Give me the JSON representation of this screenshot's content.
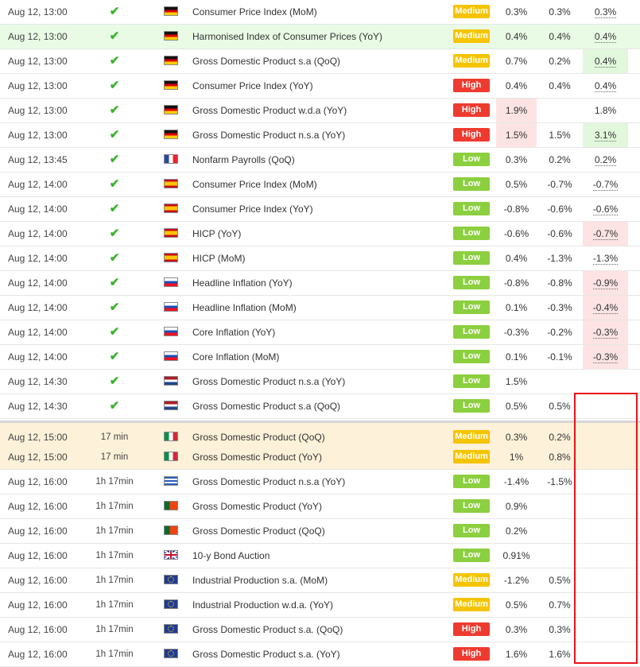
{
  "rows": [
    {
      "time": "Aug 12, 13:00",
      "status": "",
      "flag": "de",
      "event": "Consumer Price Index (MoM)",
      "importance": "Medium",
      "actual": "0.3%",
      "forecast": "0.3%",
      "previous": "0.3%",
      "hl": "",
      "act_bg": "",
      "prev_bg": ""
    },
    {
      "time": "Aug 12, 13:00",
      "status": "",
      "flag": "de",
      "event": "Harmonised Index of Consumer Prices (YoY)",
      "importance": "Medium",
      "actual": "0.4%",
      "forecast": "0.4%",
      "previous": "0.4%",
      "hl": "hl",
      "act_bg": "",
      "prev_bg": ""
    },
    {
      "time": "Aug 12, 13:00",
      "status": "",
      "flag": "de",
      "event": "Gross Domestic Product s.a (QoQ)",
      "importance": "Medium",
      "actual": "0.7%",
      "forecast": "0.2%",
      "previous": "0.4%",
      "hl": "",
      "act_bg": "",
      "prev_bg": "green"
    },
    {
      "time": "Aug 12, 13:00",
      "status": "",
      "flag": "de",
      "event": "Consumer Price Index (YoY)",
      "importance": "High",
      "actual": "0.4%",
      "forecast": "0.4%",
      "previous": "0.4%",
      "hl": "",
      "act_bg": "",
      "prev_bg": ""
    },
    {
      "time": "Aug 12, 13:00",
      "status": "",
      "flag": "de",
      "event": "Gross Domestic Product w.d.a (YoY)",
      "importance": "High",
      "actual": "1.9%",
      "forecast": "",
      "previous": "1.8%",
      "hl": "",
      "act_bg": "red",
      "prev_bg": "",
      "prev_plain": true
    },
    {
      "time": "Aug 12, 13:00",
      "status": "",
      "flag": "de",
      "event": "Gross Domestic Product n.s.a (YoY)",
      "importance": "High",
      "actual": "1.5%",
      "forecast": "1.5%",
      "previous": "3.1%",
      "hl": "",
      "act_bg": "red",
      "prev_bg": "green"
    },
    {
      "time": "Aug 12, 13:45",
      "status": "",
      "flag": "fr",
      "event": "Nonfarm Payrolls (QoQ)",
      "importance": "Low",
      "actual": "0.3%",
      "forecast": "0.2%",
      "previous": "0.2%",
      "hl": "",
      "act_bg": "",
      "prev_bg": ""
    },
    {
      "time": "Aug 12, 14:00",
      "status": "",
      "flag": "es",
      "event": "Consumer Price Index (MoM)",
      "importance": "Low",
      "actual": "0.5%",
      "forecast": "-0.7%",
      "previous": "-0.7%",
      "hl": "",
      "act_bg": "",
      "prev_bg": ""
    },
    {
      "time": "Aug 12, 14:00",
      "status": "",
      "flag": "es",
      "event": "Consumer Price Index (YoY)",
      "importance": "Low",
      "actual": "-0.8%",
      "forecast": "-0.6%",
      "previous": "-0.6%",
      "hl": "",
      "act_bg": "",
      "prev_bg": ""
    },
    {
      "time": "Aug 12, 14:00",
      "status": "",
      "flag": "es",
      "event": "HICP (YoY)",
      "importance": "Low",
      "actual": "-0.6%",
      "forecast": "-0.6%",
      "previous": "-0.7%",
      "hl": "",
      "act_bg": "",
      "prev_bg": "red"
    },
    {
      "time": "Aug 12, 14:00",
      "status": "",
      "flag": "es",
      "event": "HICP (MoM)",
      "importance": "Low",
      "actual": "0.4%",
      "forecast": "-1.3%",
      "previous": "-1.3%",
      "hl": "",
      "act_bg": "",
      "prev_bg": ""
    },
    {
      "time": "Aug 12, 14:00",
      "status": "",
      "flag": "sk",
      "event": "Headline Inflation (YoY)",
      "importance": "Low",
      "actual": "-0.8%",
      "forecast": "-0.8%",
      "previous": "-0.9%",
      "hl": "",
      "act_bg": "",
      "prev_bg": "red"
    },
    {
      "time": "Aug 12, 14:00",
      "status": "",
      "flag": "sk",
      "event": "Headline Inflation (MoM)",
      "importance": "Low",
      "actual": "0.1%",
      "forecast": "-0.3%",
      "previous": "-0.4%",
      "hl": "",
      "act_bg": "",
      "prev_bg": "red"
    },
    {
      "time": "Aug 12, 14:00",
      "status": "",
      "flag": "sk",
      "event": "Core Inflation (YoY)",
      "importance": "Low",
      "actual": "-0.3%",
      "forecast": "-0.2%",
      "previous": "-0.3%",
      "hl": "",
      "act_bg": "",
      "prev_bg": "red"
    },
    {
      "time": "Aug 12, 14:00",
      "status": "",
      "flag": "sk",
      "event": "Core Inflation (MoM)",
      "importance": "Low",
      "actual": "0.1%",
      "forecast": "-0.1%",
      "previous": "-0.3%",
      "hl": "",
      "act_bg": "",
      "prev_bg": "red"
    },
    {
      "time": "Aug 12, 14:30",
      "status": "",
      "flag": "nl",
      "event": "Gross Domestic Product n.s.a (YoY)",
      "importance": "Low",
      "actual": "1.5%",
      "forecast": "",
      "previous": "",
      "hl": "",
      "act_bg": "",
      "prev_bg": ""
    },
    {
      "time": "Aug 12, 14:30",
      "status": "",
      "flag": "nl",
      "event": "Gross Domestic Product s.a (QoQ)",
      "importance": "Low",
      "actual": "0.5%",
      "forecast": "0.5%",
      "previous": "",
      "hl": "",
      "act_bg": "",
      "prev_bg": ""
    },
    {
      "time": "Aug 12, 15:00",
      "status": "17 min",
      "flag": "it",
      "event": "Gross Domestic Product (QoQ)",
      "importance": "Medium",
      "actual": "0.3%",
      "forecast": "0.2%",
      "previous": "",
      "hl": "pend",
      "sep": true,
      "act_bg": "",
      "prev_bg": ""
    },
    {
      "time": "Aug 12, 15:00",
      "status": "17 min",
      "flag": "it",
      "event": "Gross Domestic Product (YoY)",
      "importance": "Medium",
      "actual": "1%",
      "forecast": "0.8%",
      "previous": "",
      "hl": "pend",
      "act_bg": "",
      "prev_bg": ""
    },
    {
      "time": "Aug 12, 16:00",
      "status": "1h 17min",
      "flag": "gr",
      "event": "Gross Domestic Product n.s.a (YoY)",
      "importance": "Low",
      "actual": "-1.4%",
      "forecast": "-1.5%",
      "previous": "",
      "hl": "",
      "act_bg": "",
      "prev_bg": ""
    },
    {
      "time": "Aug 12, 16:00",
      "status": "1h 17min",
      "flag": "pt",
      "event": "Gross Domestic Product (YoY)",
      "importance": "Low",
      "actual": "0.9%",
      "forecast": "",
      "previous": "",
      "hl": "",
      "act_bg": "",
      "prev_bg": ""
    },
    {
      "time": "Aug 12, 16:00",
      "status": "1h 17min",
      "flag": "pt",
      "event": "Gross Domestic Product (QoQ)",
      "importance": "Low",
      "actual": "0.2%",
      "forecast": "",
      "previous": "",
      "hl": "",
      "act_bg": "",
      "prev_bg": ""
    },
    {
      "time": "Aug 12, 16:00",
      "status": "1h 17min",
      "flag": "gb",
      "event": "10-y Bond Auction",
      "importance": "Low",
      "actual": "0.91%",
      "forecast": "",
      "previous": "",
      "hl": "",
      "act_bg": "",
      "prev_bg": ""
    },
    {
      "time": "Aug 12, 16:00",
      "status": "1h 17min",
      "flag": "eu",
      "event": "Industrial Production s.a. (MoM)",
      "importance": "Medium",
      "actual": "-1.2%",
      "forecast": "0.5%",
      "previous": "",
      "hl": "",
      "act_bg": "",
      "prev_bg": ""
    },
    {
      "time": "Aug 12, 16:00",
      "status": "1h 17min",
      "flag": "eu",
      "event": "Industrial Production w.d.a. (YoY)",
      "importance": "Medium",
      "actual": "0.5%",
      "forecast": "0.7%",
      "previous": "",
      "hl": "",
      "act_bg": "",
      "prev_bg": ""
    },
    {
      "time": "Aug 12, 16:00",
      "status": "1h 17min",
      "flag": "eu",
      "event": "Gross Domestic Product s.a. (QoQ)",
      "importance": "High",
      "actual": "0.3%",
      "forecast": "0.3%",
      "previous": "",
      "hl": "",
      "act_bg": "",
      "prev_bg": ""
    },
    {
      "time": "Aug 12, 16:00",
      "status": "1h 17min",
      "flag": "eu",
      "event": "Gross Domestic Product s.a. (YoY)",
      "importance": "High",
      "actual": "1.6%",
      "forecast": "1.6%",
      "previous": "",
      "hl": "",
      "act_bg": "",
      "prev_bg": ""
    }
  ],
  "colors": {
    "low": "#8ccf3f",
    "medium": "#f5c400",
    "high": "#ee3b2f",
    "check": "#3cb32f",
    "annotation": "#e8131c"
  }
}
